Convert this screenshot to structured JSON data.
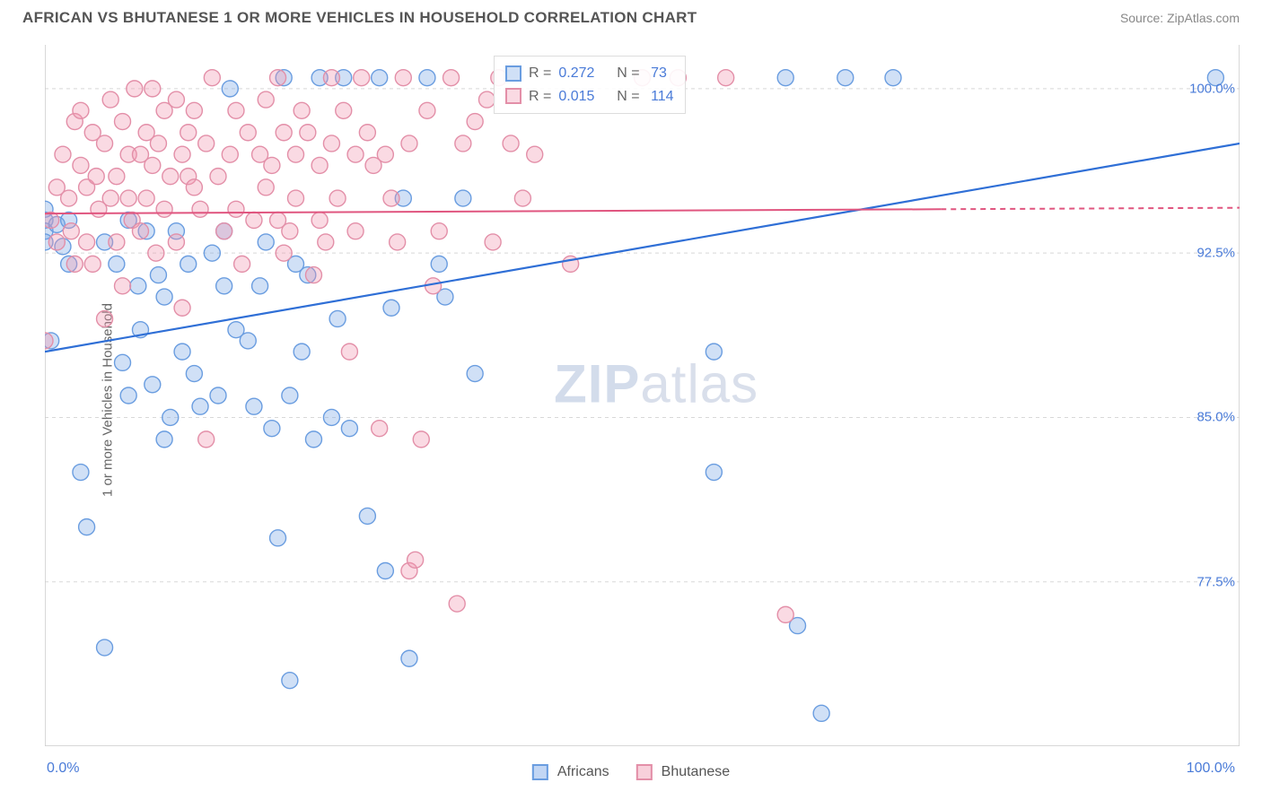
{
  "title": "AFRICAN VS BHUTANESE 1 OR MORE VEHICLES IN HOUSEHOLD CORRELATION CHART",
  "source": "Source: ZipAtlas.com",
  "ylabel": "1 or more Vehicles in Household",
  "watermark_bold": "ZIP",
  "watermark_light": "atlas",
  "chart": {
    "type": "scatter",
    "xlim": [
      0,
      100
    ],
    "ylim": [
      70,
      102
    ],
    "x_ticks_minor": [
      0,
      10,
      20,
      30,
      40,
      50,
      60,
      70,
      80,
      90,
      100
    ],
    "y_gridlines": [
      77.5,
      85.0,
      92.5,
      100.0
    ],
    "y_tick_labels": [
      "77.5%",
      "85.0%",
      "92.5%",
      "100.0%"
    ],
    "x_axis_left_label": "0.0%",
    "x_axis_right_label": "100.0%",
    "background_color": "#ffffff",
    "grid_color": "#d8d8d8",
    "axis_color": "#cccccc",
    "marker_radius": 9,
    "marker_stroke_width": 1.4,
    "series": [
      {
        "name": "Africans",
        "label": "Africans",
        "fill": "rgba(120,165,230,0.35)",
        "stroke": "#6a9de0",
        "stats": {
          "R": "0.272",
          "N": "73"
        },
        "regression": {
          "x1": 0,
          "y1": 88.0,
          "x2": 100,
          "y2": 97.5,
          "extrapolate_x": 0
        },
        "line_color": "#2f6fd6",
        "line_width": 2.2,
        "points": [
          [
            0,
            94.5
          ],
          [
            0,
            94
          ],
          [
            0,
            93.5
          ],
          [
            0,
            93
          ],
          [
            0.5,
            88.5
          ],
          [
            1,
            93.8
          ],
          [
            1.5,
            92.8
          ],
          [
            2,
            94
          ],
          [
            2,
            92
          ],
          [
            3,
            82.5
          ],
          [
            3.5,
            80
          ],
          [
            5,
            93
          ],
          [
            5,
            74.5
          ],
          [
            6,
            92
          ],
          [
            6.5,
            87.5
          ],
          [
            7,
            86
          ],
          [
            7,
            94
          ],
          [
            7.8,
            91
          ],
          [
            8,
            89
          ],
          [
            8.5,
            93.5
          ],
          [
            9,
            86.5
          ],
          [
            9.5,
            91.5
          ],
          [
            10,
            90.5
          ],
          [
            10,
            84
          ],
          [
            10.5,
            85
          ],
          [
            11,
            93.5
          ],
          [
            11.5,
            88
          ],
          [
            12,
            92
          ],
          [
            12.5,
            87
          ],
          [
            13,
            85.5
          ],
          [
            14,
            92.5
          ],
          [
            14.5,
            86
          ],
          [
            15,
            91
          ],
          [
            15,
            93.5
          ],
          [
            15.5,
            100
          ],
          [
            16,
            89
          ],
          [
            17,
            88.5
          ],
          [
            17.5,
            85.5
          ],
          [
            18,
            91
          ],
          [
            18.5,
            93
          ],
          [
            19,
            84.5
          ],
          [
            19.5,
            79.5
          ],
          [
            20,
            100.5
          ],
          [
            20.5,
            86
          ],
          [
            20.5,
            73
          ],
          [
            21,
            92
          ],
          [
            21.5,
            88
          ],
          [
            22,
            91.5
          ],
          [
            22.5,
            84
          ],
          [
            23,
            100.5
          ],
          [
            24,
            85
          ],
          [
            24.5,
            89.5
          ],
          [
            25,
            100.5
          ],
          [
            25.5,
            84.5
          ],
          [
            27,
            80.5
          ],
          [
            28,
            100.5
          ],
          [
            28.5,
            78
          ],
          [
            29,
            90
          ],
          [
            30,
            95
          ],
          [
            30.5,
            74
          ],
          [
            32,
            100.5
          ],
          [
            33,
            92
          ],
          [
            33.5,
            90.5
          ],
          [
            35,
            95
          ],
          [
            36,
            87
          ],
          [
            56,
            88
          ],
          [
            56,
            82.5
          ],
          [
            62,
            100.5
          ],
          [
            63,
            75.5
          ],
          [
            65,
            71.5
          ],
          [
            67,
            100.5
          ],
          [
            71,
            100.5
          ],
          [
            98,
            100.5
          ]
        ]
      },
      {
        "name": "Bhutanese",
        "label": "Bhutanese",
        "fill": "rgba(240,150,175,0.35)",
        "stroke": "#e38fa8",
        "stats": {
          "R": "0.015",
          "N": "114"
        },
        "regression": {
          "x1": 0,
          "y1": 94.3,
          "x2": 75,
          "y2": 94.5,
          "extrapolate_x": 100
        },
        "line_color": "#e0557f",
        "line_width": 2.0,
        "points": [
          [
            0,
            88.5
          ],
          [
            0.5,
            94
          ],
          [
            1,
            93
          ],
          [
            1,
            95.5
          ],
          [
            1.5,
            97
          ],
          [
            2,
            95
          ],
          [
            2.2,
            93.5
          ],
          [
            2.5,
            98.5
          ],
          [
            2.5,
            92
          ],
          [
            3,
            99
          ],
          [
            3,
            96.5
          ],
          [
            3.5,
            95.5
          ],
          [
            3.5,
            93
          ],
          [
            4,
            92
          ],
          [
            4,
            98
          ],
          [
            4.3,
            96
          ],
          [
            4.5,
            94.5
          ],
          [
            5,
            97.5
          ],
          [
            5,
            89.5
          ],
          [
            5.5,
            95
          ],
          [
            5.5,
            99.5
          ],
          [
            6,
            93
          ],
          [
            6,
            96
          ],
          [
            6.5,
            98.5
          ],
          [
            6.5,
            91
          ],
          [
            7,
            97
          ],
          [
            7,
            95
          ],
          [
            7.3,
            94
          ],
          [
            7.5,
            100
          ],
          [
            8,
            97
          ],
          [
            8,
            93.5
          ],
          [
            8.5,
            95
          ],
          [
            8.5,
            98
          ],
          [
            9,
            96.5
          ],
          [
            9,
            100
          ],
          [
            9.3,
            92.5
          ],
          [
            9.5,
            97.5
          ],
          [
            10,
            99
          ],
          [
            10,
            94.5
          ],
          [
            10.5,
            96
          ],
          [
            11,
            99.5
          ],
          [
            11,
            93
          ],
          [
            11.5,
            97
          ],
          [
            11.5,
            90
          ],
          [
            12,
            98
          ],
          [
            12,
            96
          ],
          [
            12.5,
            95.5
          ],
          [
            12.5,
            99
          ],
          [
            13,
            94.5
          ],
          [
            13.5,
            97.5
          ],
          [
            13.5,
            84
          ],
          [
            14,
            100.5
          ],
          [
            14.5,
            96
          ],
          [
            15,
            93.5
          ],
          [
            15.5,
            97
          ],
          [
            16,
            99
          ],
          [
            16,
            94.5
          ],
          [
            16.5,
            92
          ],
          [
            17,
            98
          ],
          [
            17.5,
            94
          ],
          [
            18,
            97
          ],
          [
            18.5,
            95.5
          ],
          [
            18.5,
            99.5
          ],
          [
            19,
            96.5
          ],
          [
            19.5,
            94
          ],
          [
            19.5,
            100.5
          ],
          [
            20,
            92.5
          ],
          [
            20,
            98
          ],
          [
            20.5,
            93.5
          ],
          [
            21,
            97
          ],
          [
            21,
            95
          ],
          [
            21.5,
            99
          ],
          [
            22,
            98
          ],
          [
            22.5,
            91.5
          ],
          [
            23,
            96.5
          ],
          [
            23,
            94
          ],
          [
            23.5,
            93
          ],
          [
            24,
            100.5
          ],
          [
            24,
            97.5
          ],
          [
            24.5,
            95
          ],
          [
            25,
            99
          ],
          [
            25.5,
            88
          ],
          [
            26,
            93.5
          ],
          [
            26,
            97
          ],
          [
            26.5,
            100.5
          ],
          [
            27,
            98
          ],
          [
            27.5,
            96.5
          ],
          [
            28,
            84.5
          ],
          [
            28.5,
            97
          ],
          [
            29,
            95
          ],
          [
            29.5,
            93
          ],
          [
            30,
            100.5
          ],
          [
            30.5,
            97.5
          ],
          [
            30.5,
            78
          ],
          [
            31,
            78.5
          ],
          [
            31.5,
            84
          ],
          [
            32,
            99
          ],
          [
            32.5,
            91
          ],
          [
            33,
            93.5
          ],
          [
            34,
            100.5
          ],
          [
            34.5,
            76.5
          ],
          [
            35,
            97.5
          ],
          [
            36,
            98.5
          ],
          [
            37,
            99.5
          ],
          [
            37.5,
            93
          ],
          [
            38,
            100.5
          ],
          [
            39,
            97.5
          ],
          [
            40,
            95
          ],
          [
            41,
            97
          ],
          [
            44,
            92
          ],
          [
            50,
            100.5
          ],
          [
            53,
            100.5
          ],
          [
            57,
            100.5
          ],
          [
            62,
            76
          ]
        ]
      }
    ]
  },
  "legend_bottom": [
    {
      "label": "Africans",
      "fill": "rgba(120,165,230,0.45)",
      "stroke": "#6a9de0"
    },
    {
      "label": "Bhutanese",
      "fill": "rgba(240,150,175,0.45)",
      "stroke": "#e38fa8"
    }
  ]
}
